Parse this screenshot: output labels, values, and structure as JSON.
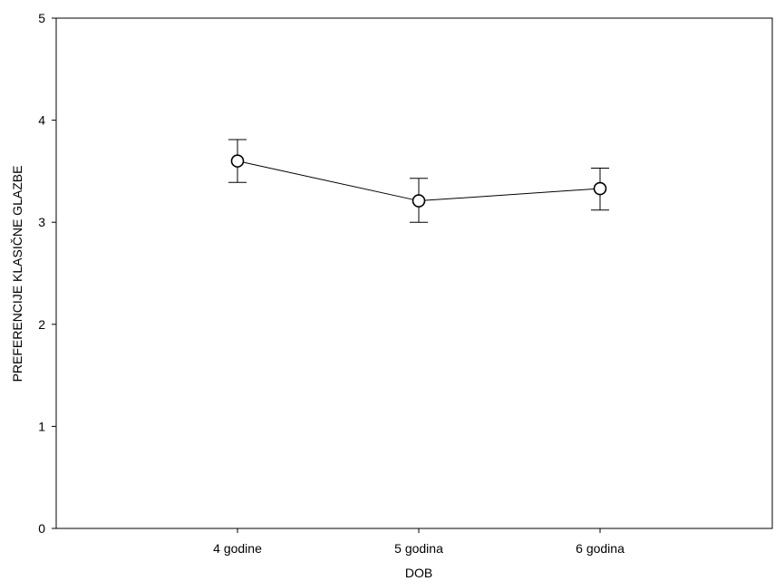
{
  "chart_data": {
    "type": "line",
    "title": "",
    "xlabel": "DOB",
    "ylabel": "PREFERENCIJE KLASIČNE GLAZBE",
    "categories": [
      "4 godine",
      "5 godina",
      "6 godina"
    ],
    "series": [
      {
        "values": [
          3.6,
          3.21,
          3.33
        ],
        "error_low": [
          3.39,
          3.0,
          3.12
        ],
        "error_high": [
          3.81,
          3.43,
          3.53
        ]
      }
    ],
    "ylim": [
      0,
      5
    ],
    "yticks": [
      "0",
      "1",
      "2",
      "3",
      "4",
      "5"
    ],
    "grid": false,
    "legend": "none",
    "marker": "open-circle",
    "line_color": "#000000"
  }
}
